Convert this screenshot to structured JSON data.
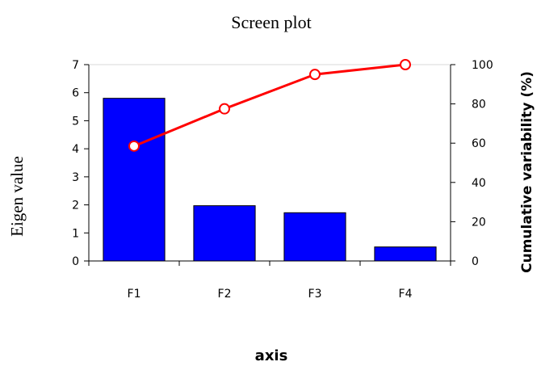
{
  "chart_data": {
    "type": "bar",
    "title": "Screen plot",
    "xlabel": "axis",
    "ylabel": "Eigen value",
    "y2label": "Cumulative variability (%)",
    "categories": [
      "F1",
      "F2",
      "F3",
      "F4"
    ],
    "series": [
      {
        "type": "bar",
        "axis": "left",
        "color": "#0000ff",
        "values": [
          5.8,
          1.97,
          1.72,
          0.5
        ]
      },
      {
        "type": "line",
        "axis": "right",
        "color": "#ff0000",
        "values": [
          58.5,
          77.5,
          95.0,
          100.0
        ]
      }
    ],
    "ylim": [
      0,
      7
    ],
    "y2lim": [
      0,
      100
    ],
    "yticks": [
      "0",
      "1",
      "2",
      "3",
      "4",
      "5",
      "6",
      "7"
    ],
    "y2ticks": [
      "0",
      "20",
      "40",
      "60",
      "80",
      "100"
    ],
    "grid": false,
    "legend": "none"
  }
}
